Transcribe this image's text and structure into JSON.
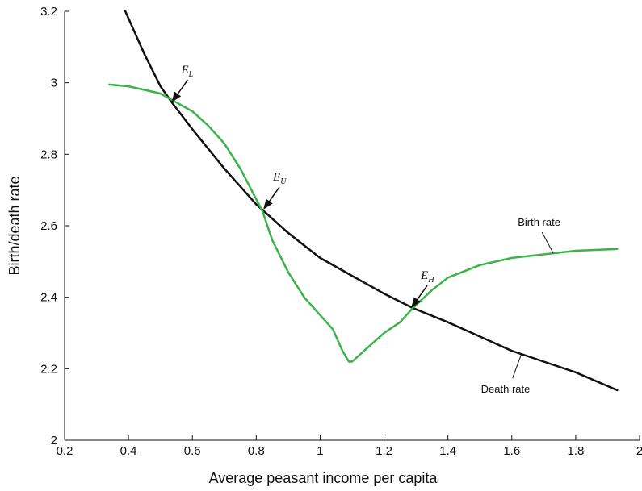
{
  "chart_data": {
    "type": "line",
    "title": "",
    "xlabel": "Average peasant income per capita",
    "ylabel": "Birth/death rate",
    "xlim": [
      0.2,
      2.0
    ],
    "ylim": [
      2.0,
      3.2
    ],
    "xticks": [
      0.2,
      0.4,
      0.6,
      0.8,
      1.0,
      1.2,
      1.4,
      1.6,
      1.8,
      2.0
    ],
    "xtick_labels": [
      "0.2",
      "0.4",
      "0.6",
      "0.8",
      "1",
      "1.2",
      "1.4",
      "1.6",
      "1.8",
      "2"
    ],
    "yticks": [
      2.0,
      2.2,
      2.4,
      2.6,
      2.8,
      3.0,
      3.2
    ],
    "ytick_labels": [
      "2",
      "2.2",
      "2.4",
      "2.6",
      "2.8",
      "3",
      "3.2"
    ],
    "grid": false,
    "legend": "none",
    "series": [
      {
        "name": "Death rate",
        "color": "#111111",
        "x": [
          0.39,
          0.45,
          0.5,
          0.54,
          0.6,
          0.7,
          0.8,
          0.9,
          1.0,
          1.1,
          1.2,
          1.29,
          1.4,
          1.5,
          1.6,
          1.7,
          1.8,
          1.93
        ],
        "y": [
          3.2,
          3.08,
          2.99,
          2.94,
          2.87,
          2.76,
          2.66,
          2.58,
          2.51,
          2.46,
          2.41,
          2.37,
          2.33,
          2.29,
          2.25,
          2.22,
          2.19,
          2.14
        ]
      },
      {
        "name": "Birth rate",
        "color": "#3cb34a",
        "x": [
          0.34,
          0.4,
          0.45,
          0.5,
          0.54,
          0.6,
          0.65,
          0.7,
          0.75,
          0.82,
          0.85,
          0.9,
          0.95,
          1.0,
          1.04,
          1.07,
          1.09,
          1.1,
          1.15,
          1.2,
          1.25,
          1.29,
          1.35,
          1.4,
          1.5,
          1.6,
          1.7,
          1.8,
          1.93
        ],
        "y": [
          2.995,
          2.99,
          2.98,
          2.97,
          2.95,
          2.92,
          2.88,
          2.83,
          2.76,
          2.64,
          2.56,
          2.47,
          2.4,
          2.35,
          2.31,
          2.25,
          2.22,
          2.22,
          2.26,
          2.3,
          2.33,
          2.37,
          2.42,
          2.455,
          2.49,
          2.51,
          2.52,
          2.53,
          2.535
        ]
      }
    ],
    "annotations": [
      {
        "label": "E",
        "sub": "L",
        "x": 0.535,
        "y": 2.945
      },
      {
        "label": "E",
        "sub": "U",
        "x": 0.822,
        "y": 2.645
      },
      {
        "label": "E",
        "sub": "H",
        "x": 1.285,
        "y": 2.37
      }
    ],
    "series_labels": [
      {
        "text": "Birth rate",
        "series": "Birth rate"
      },
      {
        "text": "Death rate",
        "series": "Death rate"
      }
    ]
  }
}
